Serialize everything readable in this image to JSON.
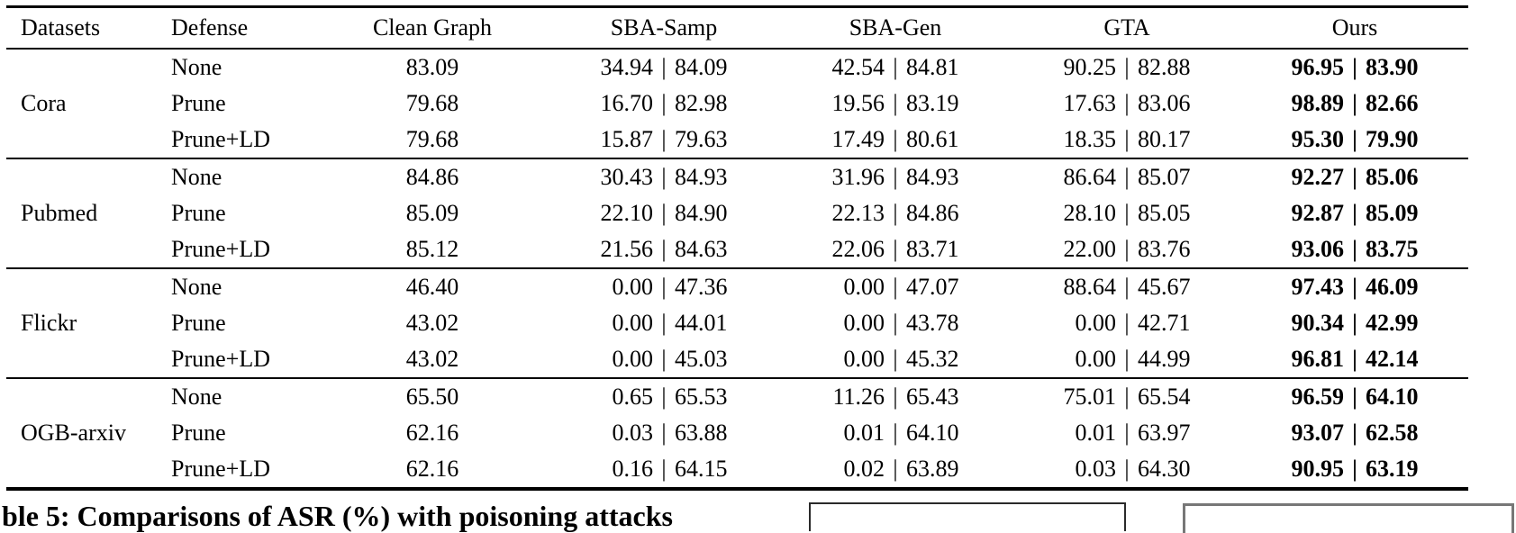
{
  "table": {
    "headers": [
      "Datasets",
      "Defense",
      "Clean Graph",
      "SBA-Samp",
      "SBA-Gen",
      "GTA",
      "Ours"
    ],
    "value_format": "ASR | Clean Accuracy",
    "groups": [
      {
        "dataset": "Cora",
        "rows": [
          {
            "defense": "None",
            "clean": "83.09",
            "sba_samp": [
              "34.94",
              "84.09"
            ],
            "sba_gen": [
              "42.54",
              "84.81"
            ],
            "gta": [
              "90.25",
              "82.88"
            ],
            "ours": [
              "96.95",
              "83.90"
            ]
          },
          {
            "defense": "Prune",
            "clean": "79.68",
            "sba_samp": [
              "16.70",
              "82.98"
            ],
            "sba_gen": [
              "19.56",
              "83.19"
            ],
            "gta": [
              "17.63",
              "83.06"
            ],
            "ours": [
              "98.89",
              "82.66"
            ]
          },
          {
            "defense": "Prune+LD",
            "clean": "79.68",
            "sba_samp": [
              "15.87",
              "79.63"
            ],
            "sba_gen": [
              "17.49",
              "80.61"
            ],
            "gta": [
              "18.35",
              "80.17"
            ],
            "ours": [
              "95.30",
              "79.90"
            ]
          }
        ]
      },
      {
        "dataset": "Pubmed",
        "rows": [
          {
            "defense": "None",
            "clean": "84.86",
            "sba_samp": [
              "30.43",
              "84.93"
            ],
            "sba_gen": [
              "31.96",
              "84.93"
            ],
            "gta": [
              "86.64",
              "85.07"
            ],
            "ours": [
              "92.27",
              "85.06"
            ]
          },
          {
            "defense": "Prune",
            "clean": "85.09",
            "sba_samp": [
              "22.10",
              "84.90"
            ],
            "sba_gen": [
              "22.13",
              "84.86"
            ],
            "gta": [
              "28.10",
              "85.05"
            ],
            "ours": [
              "92.87",
              "85.09"
            ]
          },
          {
            "defense": "Prune+LD",
            "clean": "85.12",
            "sba_samp": [
              "21.56",
              "84.63"
            ],
            "sba_gen": [
              "22.06",
              "83.71"
            ],
            "gta": [
              "22.00",
              "83.76"
            ],
            "ours": [
              "93.06",
              "83.75"
            ]
          }
        ]
      },
      {
        "dataset": "Flickr",
        "rows": [
          {
            "defense": "None",
            "clean": "46.40",
            "sba_samp": [
              "0.00",
              "47.36"
            ],
            "sba_gen": [
              "0.00",
              "47.07"
            ],
            "gta": [
              "88.64",
              "45.67"
            ],
            "ours": [
              "97.43",
              "46.09"
            ]
          },
          {
            "defense": "Prune",
            "clean": "43.02",
            "sba_samp": [
              "0.00",
              "44.01"
            ],
            "sba_gen": [
              "0.00",
              "43.78"
            ],
            "gta": [
              "0.00",
              "42.71"
            ],
            "ours": [
              "90.34",
              "42.99"
            ]
          },
          {
            "defense": "Prune+LD",
            "clean": "43.02",
            "sba_samp": [
              "0.00",
              "45.03"
            ],
            "sba_gen": [
              "0.00",
              "45.32"
            ],
            "gta": [
              "0.00",
              "44.99"
            ],
            "ours": [
              "96.81",
              "42.14"
            ]
          }
        ]
      },
      {
        "dataset": "OGB-arxiv",
        "rows": [
          {
            "defense": "None",
            "clean": "65.50",
            "sba_samp": [
              "0.65",
              "65.53"
            ],
            "sba_gen": [
              "11.26",
              "65.43"
            ],
            "gta": [
              "75.01",
              "65.54"
            ],
            "ours": [
              "96.59",
              "64.10"
            ]
          },
          {
            "defense": "Prune",
            "clean": "62.16",
            "sba_samp": [
              "0.03",
              "63.88"
            ],
            "sba_gen": [
              "0.01",
              "64.10"
            ],
            "gta": [
              "0.01",
              "63.97"
            ],
            "ours": [
              "93.07",
              "62.58"
            ]
          },
          {
            "defense": "Prune+LD",
            "clean": "62.16",
            "sba_samp": [
              "0.16",
              "64.15"
            ],
            "sba_gen": [
              "0.02",
              "63.89"
            ],
            "gta": [
              "0.03",
              "64.30"
            ],
            "ours": [
              "90.95",
              "63.19"
            ]
          }
        ]
      }
    ],
    "pair_separator": "|"
  },
  "caption_fragment": "ble 5: Comparisons of ASR (%) with poisoning attacks",
  "colors": {
    "text": "#000000",
    "rule": "#000000",
    "peek_box_1_border": "#2a2a2a",
    "peek_box_2_border": "#777777"
  }
}
